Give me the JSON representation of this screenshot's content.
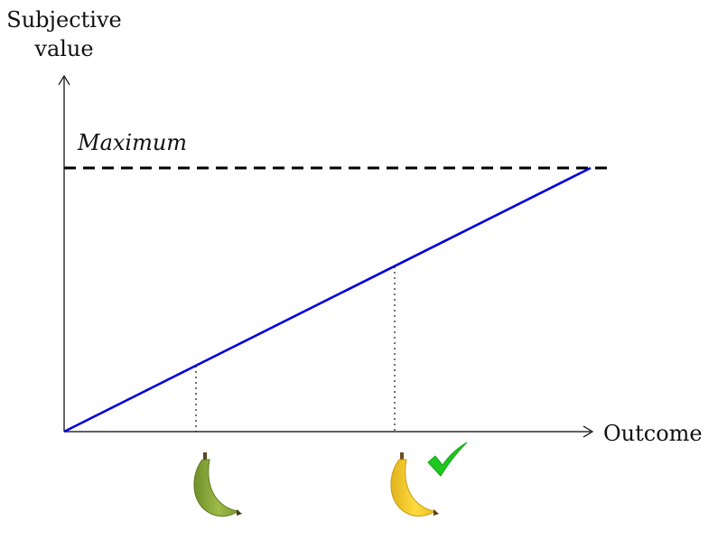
{
  "axes": {
    "y_label_line1": "Subjective",
    "y_label_line2": "value",
    "x_label": "Outcome"
  },
  "maximum_label": "Maximum",
  "colors": {
    "value_line": "#0000dd",
    "unripe_banana": "#8fae3c",
    "ripe_banana": "#f2cc2a",
    "checkmark": "#1ec81e"
  },
  "icons": {
    "unripe": "green-banana-icon",
    "ripe": "yellow-banana-icon",
    "check": "checkmark-icon"
  }
}
